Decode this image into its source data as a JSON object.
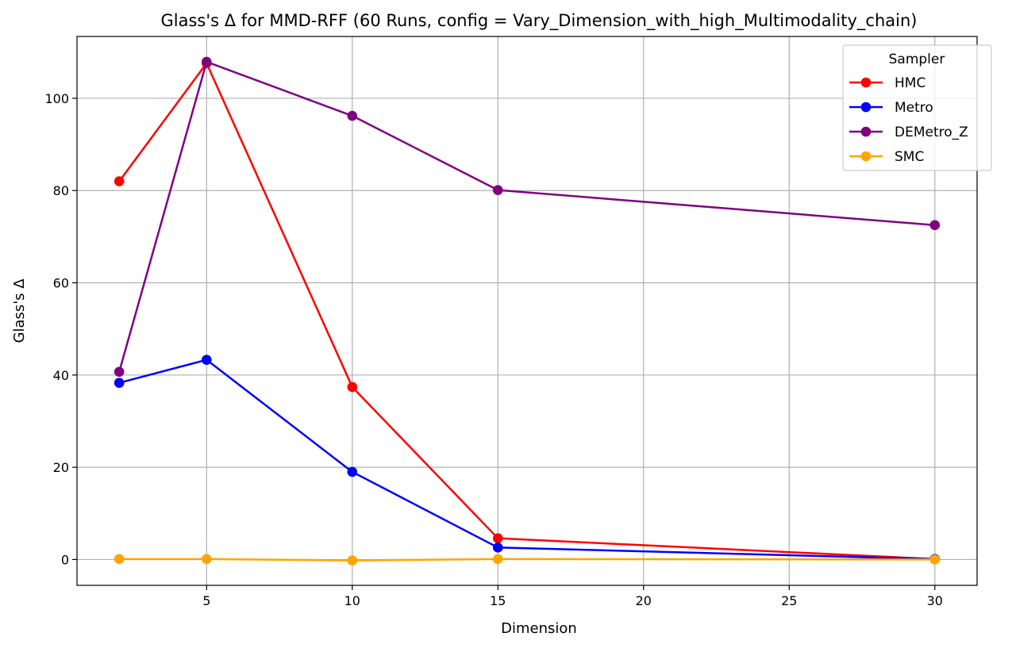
{
  "chart_data": {
    "type": "line",
    "title": "Glass's Δ for MMD-RFF (60 Runs, config = Vary_Dimension_with_high_Multimodality_chain)",
    "xlabel": "Dimension",
    "ylabel": "Glass's Δ",
    "x": [
      2,
      5,
      10,
      15,
      30
    ],
    "xlim": [
      0.55,
      31.45
    ],
    "ylim": [
      -5.6,
      113.4
    ],
    "xticks": [
      5,
      10,
      15,
      20,
      25,
      30
    ],
    "yticks": [
      0,
      20,
      40,
      60,
      80,
      100
    ],
    "grid": true,
    "legend": {
      "title": "Sampler",
      "placement": "top-right"
    },
    "series": [
      {
        "name": "HMC",
        "color": "#ff0000",
        "values": [
          82.0,
          107.6,
          37.4,
          4.6,
          0.1
        ]
      },
      {
        "name": "Metro",
        "color": "#0000ff",
        "values": [
          38.3,
          43.3,
          19.0,
          2.6,
          0.1
        ]
      },
      {
        "name": "DEMetro_Z",
        "color": "#800080",
        "values": [
          40.7,
          107.9,
          96.2,
          80.1,
          72.5
        ]
      },
      {
        "name": "SMC",
        "color": "#ffa500",
        "values": [
          0.1,
          0.1,
          -0.2,
          0.1,
          0.0
        ]
      }
    ]
  }
}
